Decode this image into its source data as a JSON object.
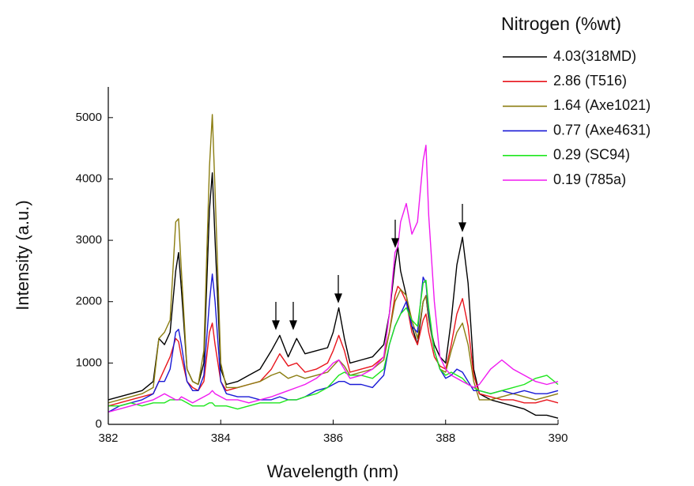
{
  "chart_data": {
    "type": "line",
    "x_label": "Wavelength (nm)",
    "y_label": "Intensity (a.u.)",
    "legend_title": "Nitrogen (%wt)",
    "legend": "upper right",
    "xlim": [
      382,
      390
    ],
    "xticks": [
      382,
      384,
      386,
      388,
      390
    ],
    "ylim": [
      0,
      5500
    ],
    "yticks": [
      0,
      1000,
      2000,
      3000,
      4000,
      5000
    ],
    "x": [
      382,
      382.2,
      382.4,
      382.6,
      382.8,
      382.9,
      383.0,
      383.1,
      383.2,
      383.25,
      383.3,
      383.4,
      383.5,
      383.6,
      383.7,
      383.8,
      383.85,
      383.9,
      384.0,
      384.1,
      384.3,
      384.5,
      384.7,
      384.9,
      385.05,
      385.2,
      385.35,
      385.5,
      385.7,
      385.9,
      386.0,
      386.1,
      386.2,
      386.3,
      386.5,
      386.7,
      386.9,
      387.0,
      387.1,
      387.15,
      387.2,
      387.3,
      387.4,
      387.5,
      387.6,
      387.65,
      387.7,
      387.8,
      387.9,
      388.0,
      388.1,
      388.2,
      388.3,
      388.4,
      388.5,
      388.6,
      388.8,
      389.0,
      389.2,
      389.4,
      389.6,
      389.8,
      390.0
    ],
    "series": [
      {
        "name": "4.03(318MD)",
        "color": "#000000",
        "values": [
          400,
          450,
          500,
          550,
          700,
          1400,
          1300,
          1500,
          2500,
          2800,
          2200,
          900,
          700,
          650,
          1000,
          3500,
          4100,
          3000,
          900,
          650,
          700,
          800,
          900,
          1200,
          1450,
          1100,
          1400,
          1150,
          1200,
          1250,
          1500,
          1900,
          1400,
          1000,
          1050,
          1100,
          1300,
          1800,
          2600,
          2900,
          2500,
          2100,
          1600,
          1300,
          2000,
          2100,
          1700,
          1300,
          1100,
          1000,
          1700,
          2600,
          3050,
          2300,
          900,
          500,
          400,
          350,
          300,
          250,
          150,
          150,
          100
        ]
      },
      {
        "name": "2.86 (T516)",
        "color": "#e8141c",
        "values": [
          300,
          350,
          400,
          450,
          500,
          700,
          900,
          1100,
          1400,
          1350,
          1100,
          700,
          600,
          550,
          700,
          1500,
          1650,
          1300,
          700,
          550,
          600,
          650,
          700,
          900,
          1150,
          950,
          1000,
          850,
          900,
          1000,
          1200,
          1450,
          1200,
          850,
          900,
          950,
          1100,
          1500,
          2100,
          2250,
          2200,
          2000,
          1500,
          1300,
          1700,
          1800,
          1500,
          1100,
          950,
          900,
          1300,
          1800,
          2050,
          1600,
          800,
          500,
          450,
          400,
          400,
          350,
          350,
          400,
          350
        ]
      },
      {
        "name": "1.64 (Axe1021)",
        "color": "#8b7d10",
        "values": [
          350,
          400,
          450,
          500,
          600,
          1400,
          1500,
          1700,
          3300,
          3350,
          2500,
          900,
          700,
          650,
          1200,
          4200,
          5050,
          3800,
          1000,
          600,
          600,
          650,
          700,
          800,
          850,
          750,
          800,
          750,
          800,
          850,
          950,
          1050,
          950,
          800,
          850,
          900,
          1050,
          1500,
          2000,
          2100,
          2200,
          2100,
          1700,
          1400,
          2000,
          2100,
          1700,
          1200,
          900,
          850,
          1200,
          1500,
          1650,
          1300,
          700,
          400,
          400,
          450,
          500,
          450,
          400,
          450,
          500
        ]
      },
      {
        "name": "0.77 (Axe4631)",
        "color": "#1a1ad6",
        "values": [
          200,
          300,
          350,
          400,
          500,
          700,
          700,
          900,
          1500,
          1550,
          1300,
          700,
          550,
          550,
          800,
          2000,
          2450,
          2000,
          700,
          500,
          450,
          450,
          400,
          400,
          450,
          400,
          400,
          450,
          550,
          600,
          650,
          700,
          700,
          650,
          650,
          600,
          800,
          1300,
          1600,
          1700,
          1800,
          2000,
          1600,
          1500,
          2400,
          2300,
          1800,
          1200,
          900,
          750,
          800,
          900,
          850,
          700,
          550,
          550,
          500,
          550,
          500,
          550,
          500,
          500,
          550
        ]
      },
      {
        "name": "0.29 (SC94)",
        "color": "#1ee61e",
        "values": [
          300,
          300,
          350,
          300,
          350,
          350,
          350,
          400,
          400,
          400,
          400,
          350,
          300,
          300,
          300,
          350,
          350,
          300,
          300,
          300,
          250,
          300,
          350,
          350,
          350,
          400,
          400,
          450,
          500,
          600,
          700,
          800,
          850,
          800,
          800,
          750,
          900,
          1300,
          1600,
          1700,
          1800,
          1900,
          1700,
          1600,
          2300,
          2350,
          1900,
          1200,
          900,
          800,
          850,
          800,
          750,
          650,
          600,
          550,
          500,
          550,
          600,
          650,
          750,
          800,
          650
        ]
      },
      {
        "name": "0.19 (785a)",
        "color": "#f01af0",
        "values": [
          200,
          250,
          300,
          350,
          400,
          450,
          500,
          450,
          400,
          400,
          450,
          400,
          350,
          400,
          450,
          500,
          550,
          500,
          450,
          400,
          400,
          350,
          400,
          450,
          500,
          550,
          600,
          650,
          750,
          900,
          1000,
          1050,
          900,
          750,
          800,
          900,
          1100,
          1800,
          2800,
          2900,
          3300,
          3600,
          3100,
          3300,
          4300,
          4550,
          3400,
          2000,
          1100,
          900,
          800,
          750,
          700,
          650,
          600,
          650,
          900,
          1050,
          900,
          800,
          700,
          650,
          700
        ]
      }
    ]
  }
}
